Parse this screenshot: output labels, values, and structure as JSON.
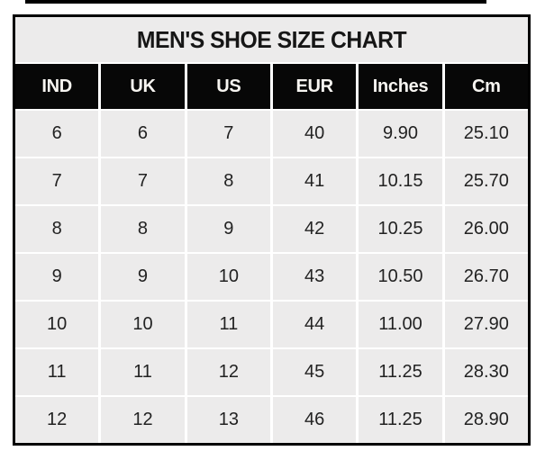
{
  "colors": {
    "page_background": "#ffffff",
    "table_border": "#000000",
    "title_background": "#ecebeb",
    "title_text": "#161616",
    "header_background": "#070707",
    "header_text": "#f7f5f1",
    "cell_background": "#ecebeb",
    "cell_text": "#222222",
    "gridline": "#ffffff",
    "top_line": "#000000"
  },
  "chart_data": {
    "type": "table",
    "title": "MEN'S SHOE SIZE CHART",
    "columns": [
      "IND",
      "UK",
      "US",
      "EUR",
      "Inches",
      "Cm"
    ],
    "rows": [
      [
        "6",
        "6",
        "7",
        "40",
        "9.90",
        "25.10"
      ],
      [
        "7",
        "7",
        "8",
        "41",
        "10.15",
        "25.70"
      ],
      [
        "8",
        "8",
        "9",
        "42",
        "10.25",
        "26.00"
      ],
      [
        "9",
        "9",
        "10",
        "43",
        "10.50",
        "26.70"
      ],
      [
        "10",
        "10",
        "11",
        "44",
        "11.00",
        "27.90"
      ],
      [
        "11",
        "11",
        "12",
        "45",
        "11.25",
        "28.30"
      ],
      [
        "12",
        "12",
        "13",
        "46",
        "11.25",
        "28.90"
      ]
    ]
  }
}
